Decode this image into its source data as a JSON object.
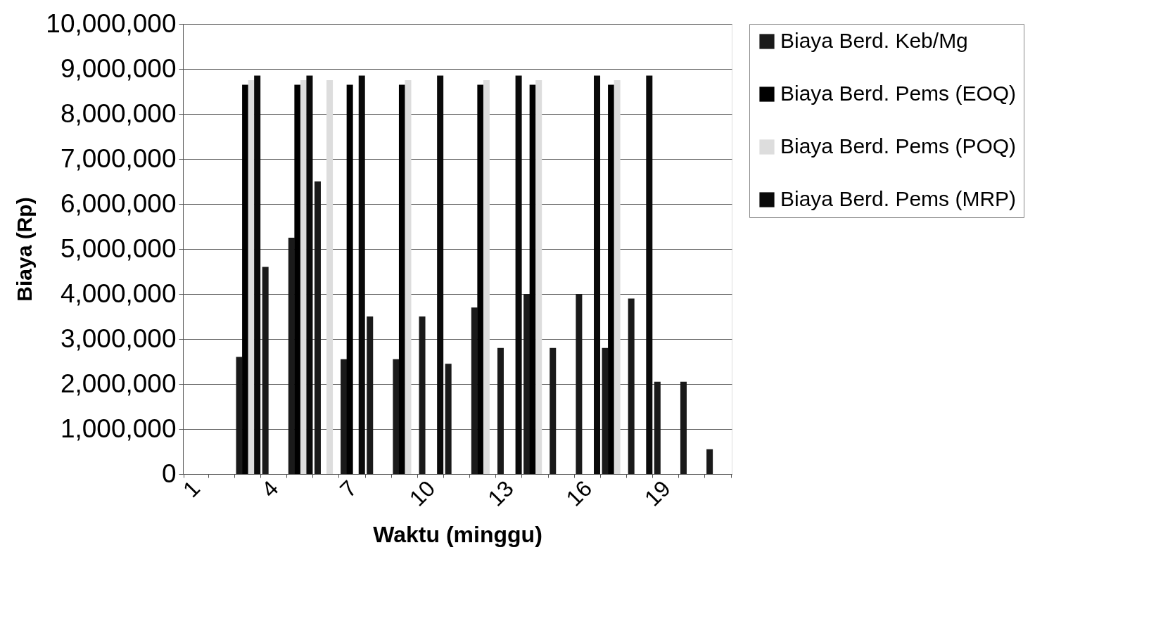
{
  "chart_data": {
    "type": "bar",
    "xlabel": "Waktu (minggu)",
    "ylabel": "Biaya (Rp)",
    "categories": [
      "1",
      null,
      null,
      "4",
      null,
      null,
      "7",
      null,
      null,
      "10",
      null,
      null,
      "13",
      null,
      null,
      "16",
      null,
      null,
      "19",
      null,
      null
    ],
    "series": [
      {
        "name": "Biaya Berd. Keb/Mg",
        "color": "#1a1a1a",
        "values": [
          0,
          0,
          2600000,
          4600000,
          5250000,
          6500000,
          2550000,
          3500000,
          2550000,
          3500000,
          2450000,
          3700000,
          2800000,
          4000000,
          2800000,
          4000000,
          2800000,
          3900000,
          2050000,
          2050000,
          550000
        ]
      },
      {
        "name": "Biaya Berd. Pems (EOQ)",
        "color": "#000000",
        "values": [
          0,
          0,
          8650000,
          0,
          8650000,
          0,
          8650000,
          0,
          8650000,
          0,
          0,
          8650000,
          0,
          8650000,
          0,
          0,
          8650000,
          0,
          0,
          0,
          0
        ]
      },
      {
        "name": "Biaya Berd. Pems (POQ)",
        "color": "#dddddd",
        "values": [
          0,
          0,
          8750000,
          0,
          8750000,
          8750000,
          0,
          0,
          8750000,
          0,
          0,
          8750000,
          0,
          8750000,
          0,
          0,
          8750000,
          0,
          0,
          0,
          0
        ]
      },
      {
        "name": "Biaya Berd. Pems (MRP)",
        "color": "#0a0a0a",
        "values": [
          0,
          0,
          8850000,
          0,
          8850000,
          0,
          8850000,
          0,
          0,
          8850000,
          0,
          0,
          8850000,
          0,
          0,
          8850000,
          0,
          8850000,
          0,
          0,
          0
        ]
      }
    ],
    "ylim": [
      0,
      10000000
    ],
    "yticks": [
      0,
      {
        "value": 1000000,
        "label": "1,000,000"
      },
      {
        "value": 2000000,
        "label": "2,000,000"
      },
      {
        "value": 3000000,
        "label": "3,000,000"
      },
      {
        "value": 4000000,
        "label": "4,000,000"
      },
      {
        "value": 5000000,
        "label": "5,000,000"
      },
      {
        "value": 6000000,
        "label": "6,000,000"
      },
      {
        "value": 7000000,
        "label": "7,000,000"
      },
      {
        "value": 8000000,
        "label": "8,000,000"
      },
      {
        "value": 9000000,
        "label": "9,000,000"
      },
      {
        "value": 10000000,
        "label": "10,000,000"
      }
    ],
    "grid": "y",
    "legend": "right"
  }
}
